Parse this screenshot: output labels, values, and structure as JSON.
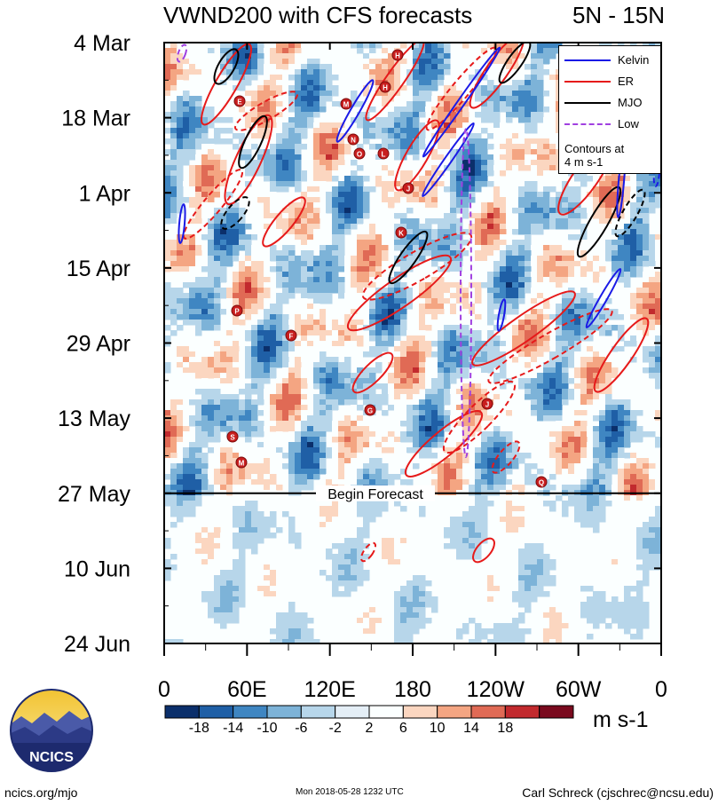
{
  "title": {
    "left": "VWND200 with CFS forecasts",
    "right": "5N - 15N"
  },
  "legend": {
    "items": [
      {
        "label": "Kelvin",
        "color": "#1a1ae6"
      },
      {
        "label": "ER",
        "color": "#e61a1a"
      },
      {
        "label": "MJO",
        "color": "#000000"
      },
      {
        "label": "Low",
        "color": "#a040e0"
      }
    ],
    "note_line1": "Contours at",
    "note_line2": "4 m s-1"
  },
  "forecast_label": "Begin Forecast",
  "units": "m s-1",
  "footer": {
    "site": "ncics.org/mjo",
    "timestamp": "Mon 2018-05-28 1232 UTC",
    "author": "Carl Schreck (cjschrec@ncsu.edu)"
  },
  "logo": {
    "text": "NCICS"
  },
  "chart_data": {
    "type": "heatmap",
    "title": "VWND200 with CFS forecasts",
    "subtitle": "5N - 15N",
    "x_ticks": [
      "0",
      "60E",
      "120E",
      "180",
      "120W",
      "60W",
      "0"
    ],
    "x_tick_lon": [
      0,
      60,
      120,
      180,
      240,
      300,
      360
    ],
    "y_ticks": [
      "4 Mar",
      "18 Mar",
      "1 Apr",
      "15 Apr",
      "29 Apr",
      "13 May",
      "27 May",
      "10 Jun",
      "24 Jun"
    ],
    "y_tick_day": [
      0,
      14,
      28,
      42,
      56,
      70,
      84,
      98,
      112
    ],
    "forecast_start_day": 84,
    "colorbar": {
      "levels": [
        "-18",
        "-14",
        "-10",
        "-6",
        "-2",
        "2",
        "6",
        "10",
        "14",
        "18"
      ],
      "colors": [
        "#0b2f6b",
        "#1f5fa6",
        "#3f86c2",
        "#7db3d8",
        "#b7d6ea",
        "#e4eef6",
        "#fbffff",
        "#fbd6c0",
        "#f4a582",
        "#e06a55",
        "#c22a2e",
        "#7a0a1e"
      ]
    },
    "storm_markers": [
      "E",
      "H",
      "H",
      "M",
      "N",
      "O",
      "L",
      "J",
      "K",
      "P",
      "F",
      "S",
      "M",
      "J",
      "G",
      "Q"
    ]
  }
}
